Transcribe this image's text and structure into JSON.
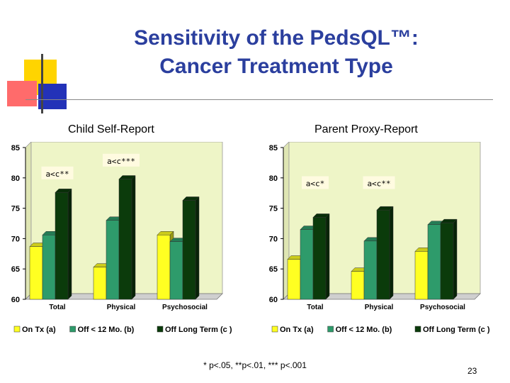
{
  "slide": {
    "title_line1": "Sensitivity of the PedsQL™:",
    "title_line2": "Cancer Treatment Type",
    "footnote": "* p<.05,  **p<.01, *** p<.001",
    "page_number": "23"
  },
  "colors": {
    "title": "#2b3f9e",
    "plot_bg": "#eef5c7",
    "on_tx": "#ffff22",
    "off_12": "#2e9b6b",
    "off_long": "#0b3b0b"
  },
  "chart_data": [
    {
      "type": "bar",
      "title": "Child Self-Report",
      "categories": [
        "Total",
        "Physical",
        "Psychosocial"
      ],
      "series": [
        {
          "name": "On Tx (a)",
          "values": [
            68.7,
            65.3,
            70.6
          ]
        },
        {
          "name": "Off < 12 Mo. (b)",
          "values": [
            70.6,
            73.0,
            69.5
          ]
        },
        {
          "name": "Off Long Term (c )",
          "values": [
            77.6,
            79.8,
            76.3
          ]
        }
      ],
      "ylim": [
        60,
        85
      ],
      "yticks": [
        60,
        65,
        70,
        75,
        80,
        85
      ],
      "annotations": [
        {
          "text": "a<c**",
          "category": "Total",
          "value": 80.7
        },
        {
          "text": "a<c***",
          "category": "Physical",
          "value": 82.8
        }
      ],
      "legend": "bottom",
      "grid": false
    },
    {
      "type": "bar",
      "title": "Parent Proxy-Report",
      "categories": [
        "Total",
        "Physical",
        "Psychosocial"
      ],
      "series": [
        {
          "name": "On Tx (a)",
          "values": [
            66.6,
            64.6,
            67.9
          ]
        },
        {
          "name": "Off < 12 Mo. (b)",
          "values": [
            71.5,
            69.6,
            72.3
          ]
        },
        {
          "name": "Off Long Term (c )",
          "values": [
            73.5,
            74.7,
            72.6
          ]
        }
      ],
      "ylim": [
        60,
        85
      ],
      "yticks": [
        60,
        65,
        70,
        75,
        80,
        85
      ],
      "annotations": [
        {
          "text": "a<c*",
          "category": "Total",
          "value": 79.1
        },
        {
          "text": "a<c**",
          "category": "Physical",
          "value": 79.1
        }
      ],
      "legend": "bottom",
      "grid": false
    }
  ]
}
